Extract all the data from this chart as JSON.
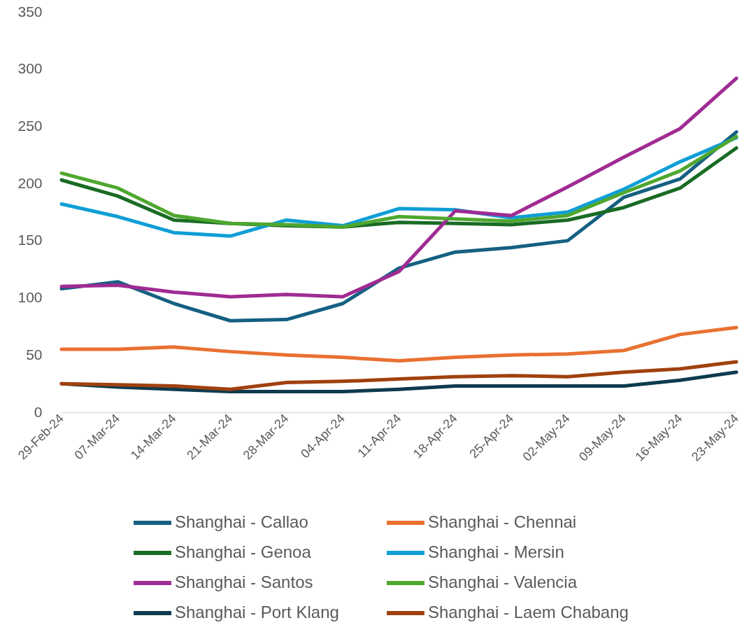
{
  "chart_data": {
    "type": "line",
    "categories": [
      "29-Feb-24",
      "07-Mar-24",
      "14-Mar-24",
      "21-Mar-24",
      "28-Mar-24",
      "04-Apr-24",
      "11-Apr-24",
      "18-Apr-24",
      "25-Apr-24",
      "02-May-24",
      "09-May-24",
      "16-May-24",
      "23-May-24"
    ],
    "series": [
      {
        "name": "Shanghai - Callao",
        "color": "#156082",
        "values": [
          108,
          114,
          95,
          80,
          81,
          95,
          126,
          140,
          144,
          150,
          188,
          204,
          245
        ]
      },
      {
        "name": "Shanghai - Chennai",
        "color": "#e97132",
        "values": [
          55,
          55,
          57,
          53,
          50,
          48,
          45,
          48,
          50,
          51,
          54,
          68,
          74
        ]
      },
      {
        "name": "Shanghai - Genoa",
        "color": "#196b24",
        "values": [
          203,
          189,
          168,
          165,
          163,
          162,
          166,
          165,
          164,
          168,
          179,
          196,
          231
        ]
      },
      {
        "name": "Shanghai - Mersin",
        "color": "#0f9ed5",
        "values": [
          182,
          171,
          157,
          154,
          168,
          163,
          178,
          177,
          170,
          175,
          195,
          219,
          240
        ]
      },
      {
        "name": "Shanghai - Santos",
        "color": "#a02b93",
        "values": [
          110,
          111,
          105,
          101,
          103,
          101,
          123,
          176,
          172,
          197,
          223,
          248,
          292
        ]
      },
      {
        "name": "Shanghai - Valencia",
        "color": "#4ea72e",
        "values": [
          209,
          196,
          172,
          165,
          164,
          162,
          171,
          169,
          167,
          172,
          192,
          211,
          241
        ]
      },
      {
        "name": "Shanghai - Port Klang",
        "color": "#0d3a4e",
        "values": [
          25,
          22,
          20,
          18,
          18,
          18,
          20,
          23,
          23,
          23,
          23,
          28,
          35
        ]
      },
      {
        "name": "Shanghai - Laem Chabang",
        "color": "#a0410f",
        "values": [
          25,
          24,
          23,
          20,
          26,
          27,
          29,
          31,
          32,
          31,
          35,
          38,
          44
        ]
      }
    ],
    "ylim": [
      0,
      350
    ],
    "yticks": [
      0,
      50,
      100,
      150,
      200,
      250,
      300,
      350
    ],
    "grid": false,
    "legend": "bottom",
    "marker": "none",
    "line_style": "solid"
  }
}
